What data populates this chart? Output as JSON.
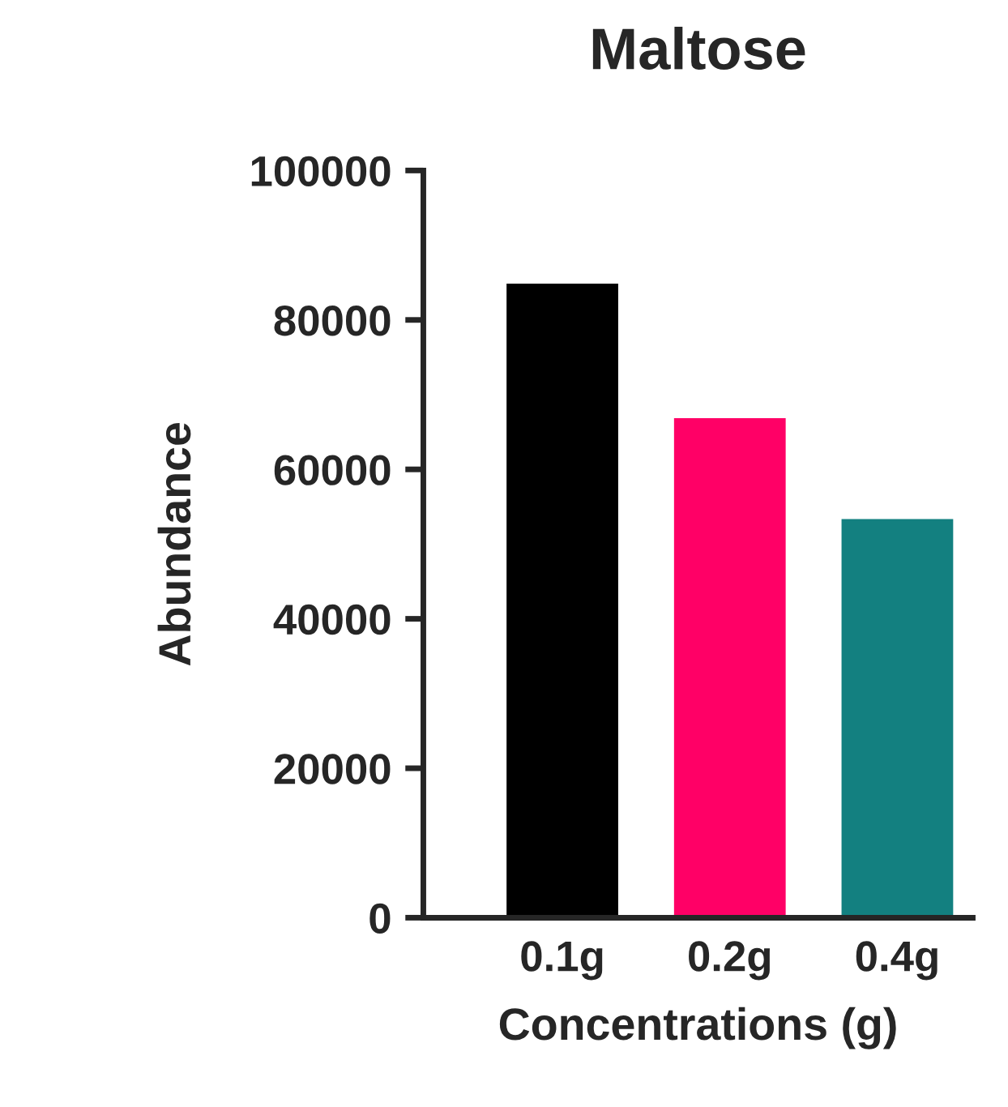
{
  "chart_data": {
    "type": "bar",
    "title": "Maltose",
    "xlabel": "Concentrations (g)",
    "ylabel": "Abundance",
    "categories": [
      "0.1g",
      "0.2g",
      "0.4g"
    ],
    "values": [
      85000,
      67000,
      53500
    ],
    "colors": [
      "#000000",
      "#ff0066",
      "#138080"
    ],
    "ylim": [
      0,
      100000
    ],
    "yticks": [
      0,
      20000,
      40000,
      60000,
      80000,
      100000
    ],
    "grid": false
  }
}
